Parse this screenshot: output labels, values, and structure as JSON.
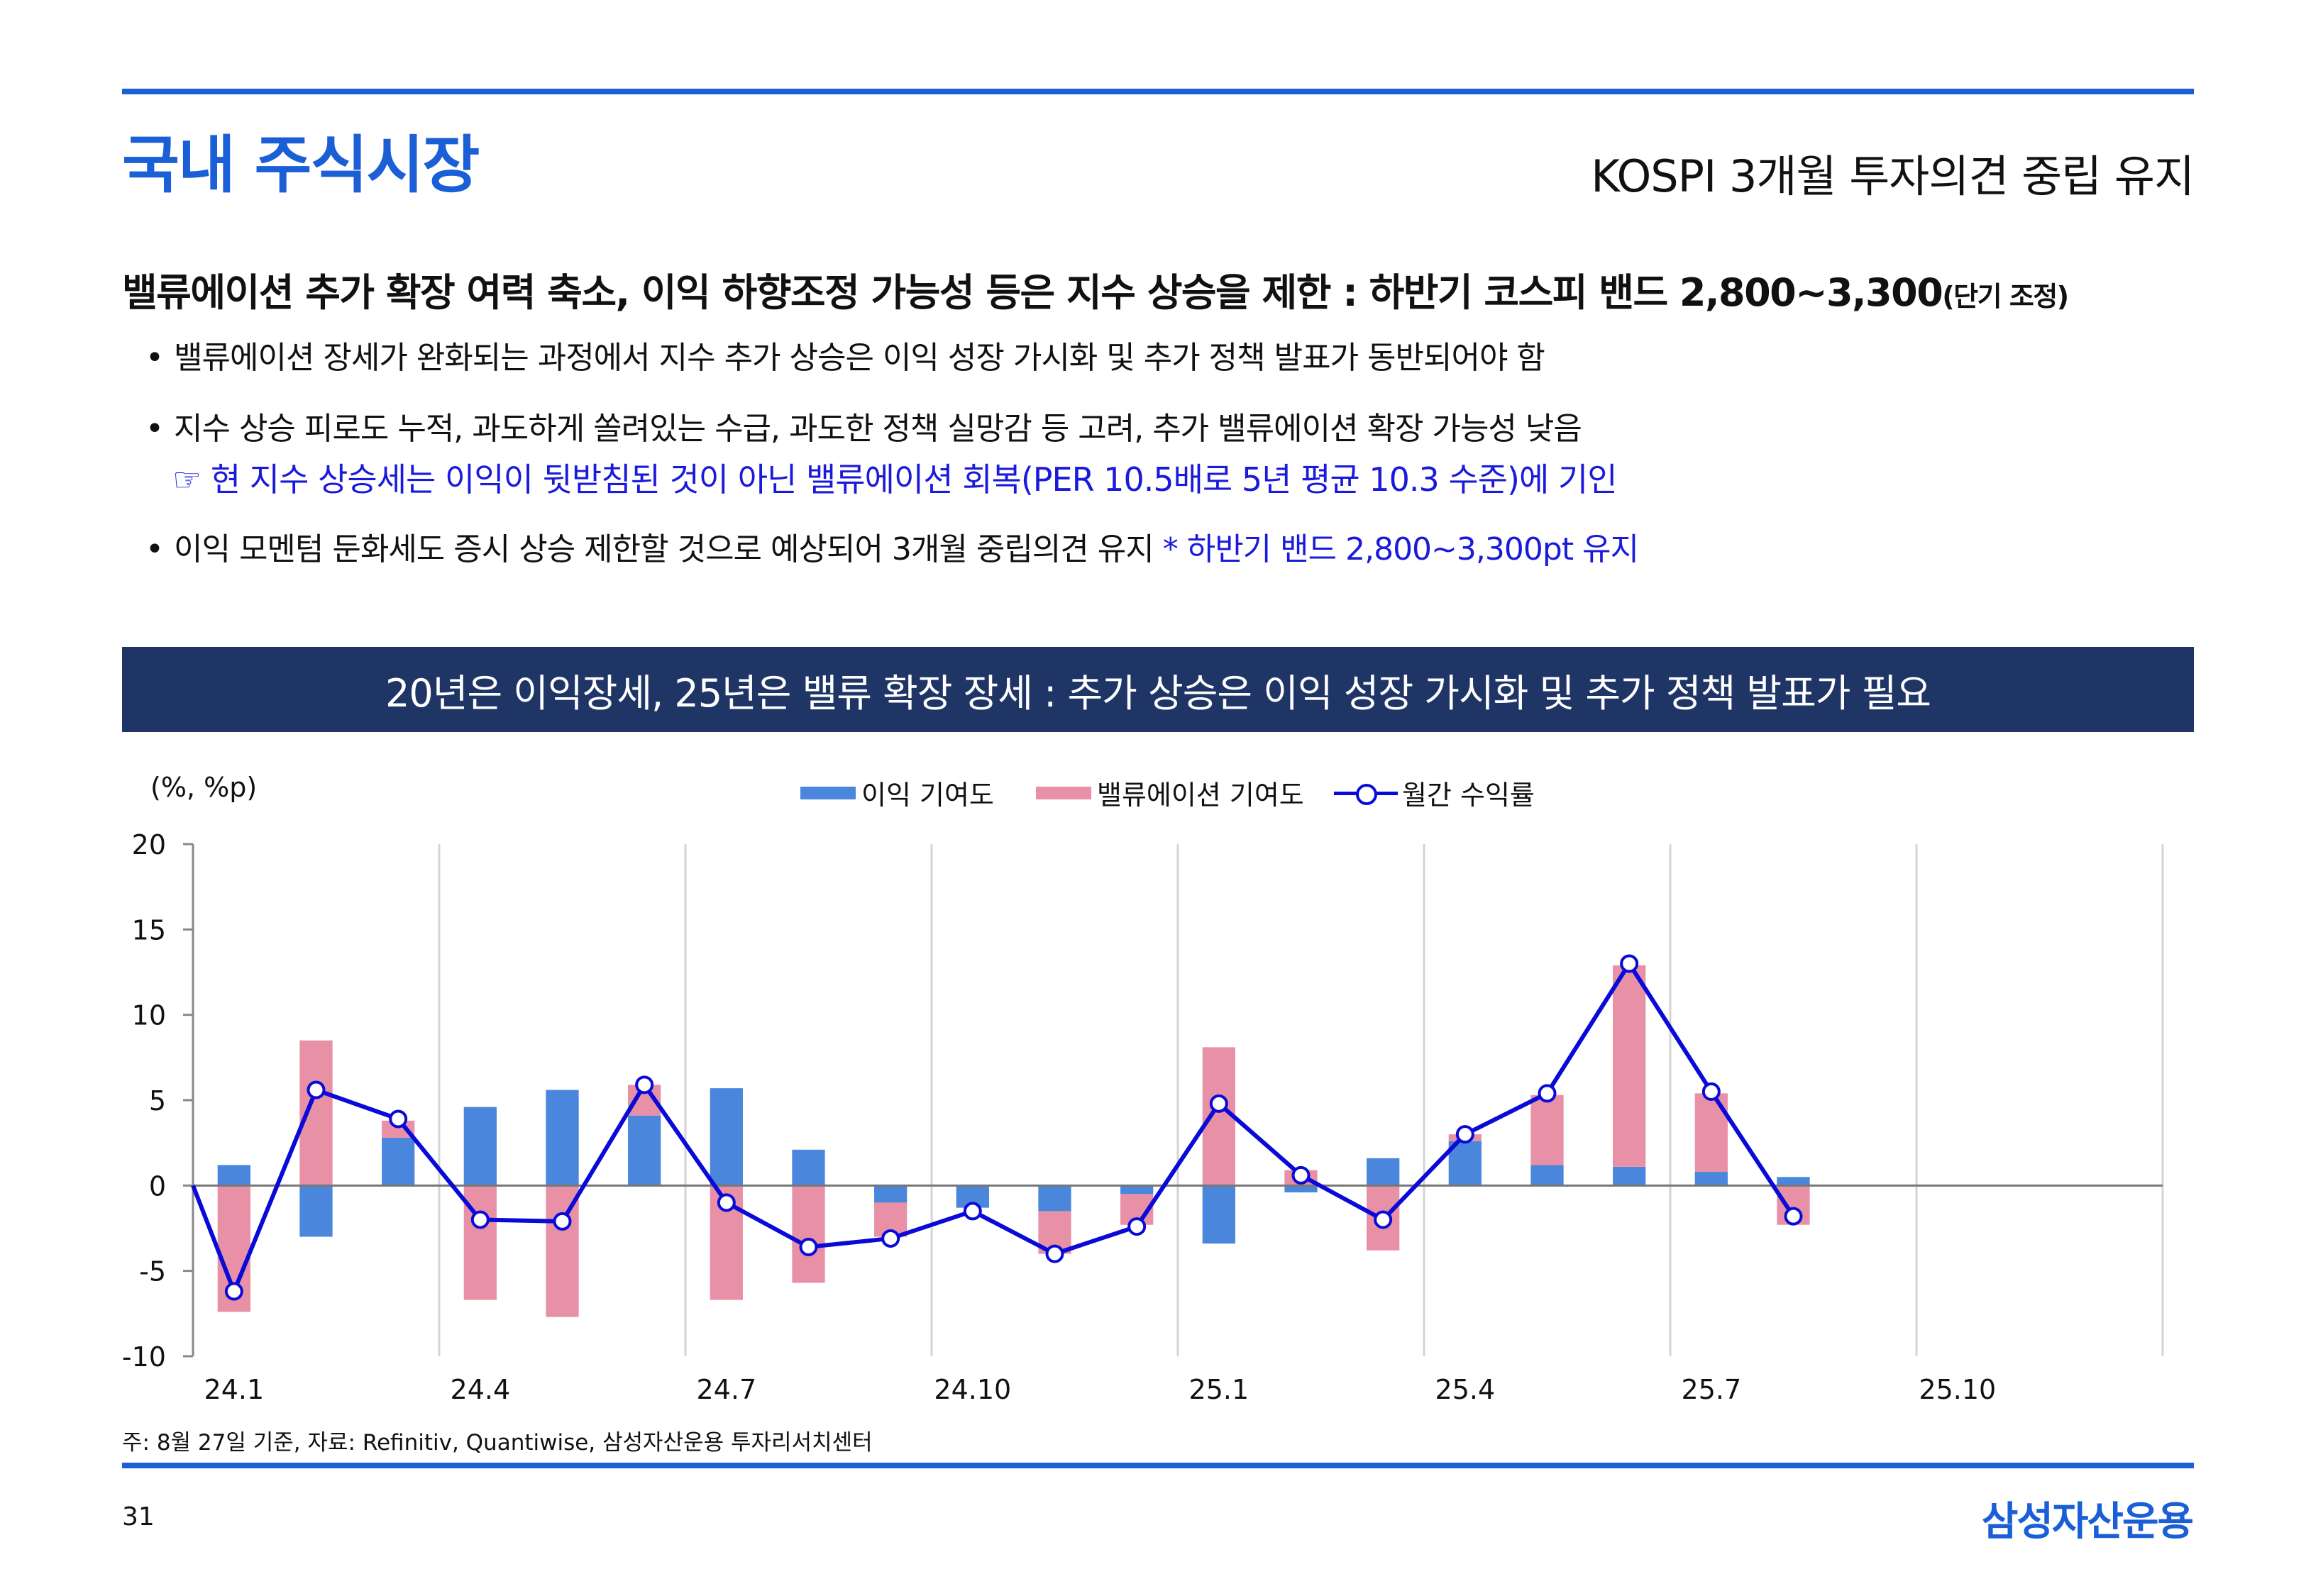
{
  "header": {
    "title": "국내 주식시장",
    "subtitle": "KOSPI 3개월 투자의견 중립 유지"
  },
  "headline": {
    "text": "밸류에이션 추가 확장 여력 축소, 이익 하향조정 가능성 등은 지수 상승을 제한 : 하반기 코스피 밴드 2,800~3,300",
    "note": "(단기 조정)"
  },
  "bullets": [
    {
      "text": "밸류에이션 장세가 완화되는 과정에서 지수 추가 상승은 이익 성장 가시화 및 추가 정책 발표가 동반되어야 함"
    },
    {
      "text": "지수 상승 피로도 누적, 과도하게 쏠려있는 수급, 과도한 정책 실망감 등 고려, 추가 밸류에이션 확장 가능성 낮음",
      "sub": "☞ 현 지수 상승세는 이익이 뒷받침된 것이 아닌 밸류에이션 회복(PER 10.5배로 5년 평균 10.3 수준)에 기인"
    },
    {
      "text": "이익 모멘텀 둔화세도 증시 상승 제한할 것으로 예상되어 3개월 중립의견 유지 ",
      "highlight": "* 하반기 밴드 2,800~3,300pt 유지"
    }
  ],
  "banner": "20년은 이익장세, 25년은 밸류 확장 장세 : 추가 상승은 이익 성장 가시화 및 추가 정책 발표가 필요",
  "chart_data": {
    "type": "bar",
    "unit_label": "(%, %p)",
    "ylim": [
      -10,
      20
    ],
    "yticks": [
      -10,
      -5,
      0,
      5,
      10,
      15,
      20
    ],
    "x_tick_labels": [
      "24.1",
      "24.4",
      "24.7",
      "24.10",
      "25.1",
      "25.4",
      "25.7",
      "25.10"
    ],
    "categories": [
      "24.1",
      "24.2",
      "24.3",
      "24.4",
      "24.5",
      "24.6",
      "24.7",
      "24.8",
      "24.9",
      "24.10",
      "24.11",
      "24.12",
      "25.1",
      "25.2",
      "25.3",
      "25.4",
      "25.5",
      "25.6",
      "25.7",
      "25.8"
    ],
    "series": [
      {
        "name": "이익 기여도",
        "type": "bar",
        "color": "#4a86dc",
        "values": [
          1.2,
          -3.0,
          2.8,
          4.6,
          5.6,
          4.1,
          5.7,
          2.1,
          -1.0,
          -1.3,
          -1.5,
          -0.5,
          -3.4,
          -0.4,
          1.6,
          2.6,
          1.2,
          1.1,
          0.8,
          0.5
        ]
      },
      {
        "name": "밸류에이션 기여도",
        "type": "bar",
        "color": "#e890a6",
        "values": [
          -7.4,
          8.5,
          1.0,
          -6.7,
          -7.7,
          1.8,
          -6.7,
          -5.7,
          -2.0,
          0.0,
          -2.5,
          -1.8,
          8.1,
          0.9,
          -3.8,
          0.4,
          4.1,
          11.8,
          4.6,
          -2.3
        ]
      },
      {
        "name": "월간 수익률",
        "type": "line",
        "color": "#0a0ad8",
        "values": [
          -6.2,
          5.6,
          3.9,
          -2.0,
          -2.1,
          5.9,
          -1.0,
          -3.6,
          -3.1,
          -1.5,
          -4.0,
          -2.4,
          4.8,
          0.6,
          -2.0,
          3.0,
          5.4,
          13.0,
          5.5,
          -1.8
        ]
      }
    ],
    "grid": "vertical",
    "legend_position": "top"
  },
  "footnote": "주: 8월 27일 기준, 자료: Refinitiv, Quantiwise, 삼성자산운용 투자리서치센터",
  "page_number": "31",
  "logo": "삼성자산운용"
}
